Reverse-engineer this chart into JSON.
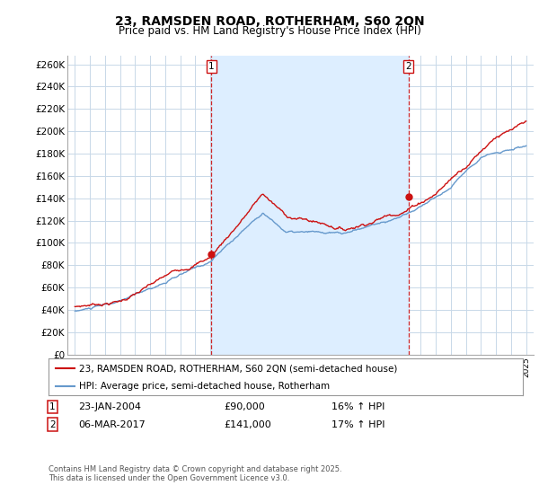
{
  "title": "23, RAMSDEN ROAD, ROTHERHAM, S60 2QN",
  "subtitle": "Price paid vs. HM Land Registry's House Price Index (HPI)",
  "ylabel_ticks": [
    "£0",
    "£20K",
    "£40K",
    "£60K",
    "£80K",
    "£100K",
    "£120K",
    "£140K",
    "£160K",
    "£180K",
    "£200K",
    "£220K",
    "£240K",
    "£260K"
  ],
  "ytick_values": [
    0,
    20000,
    40000,
    60000,
    80000,
    100000,
    120000,
    140000,
    160000,
    180000,
    200000,
    220000,
    240000,
    260000
  ],
  "ylim": [
    0,
    268000
  ],
  "xlim_start": 1994.5,
  "xlim_end": 2025.5,
  "hpi_color": "#6699cc",
  "price_color": "#cc1111",
  "dashed_line_color": "#cc1111",
  "shade_color": "#ddeeff",
  "marker1_x": 2004.07,
  "marker1_y": 90000,
  "marker2_x": 2017.18,
  "marker2_y": 141000,
  "legend_label1": "23, RAMSDEN ROAD, ROTHERHAM, S60 2QN (semi-detached house)",
  "legend_label2": "HPI: Average price, semi-detached house, Rotherham",
  "table_row1": [
    "1",
    "23-JAN-2004",
    "£90,000",
    "16% ↑ HPI"
  ],
  "table_row2": [
    "2",
    "06-MAR-2017",
    "£141,000",
    "17% ↑ HPI"
  ],
  "footer": "Contains HM Land Registry data © Crown copyright and database right 2025.\nThis data is licensed under the Open Government Licence v3.0.",
  "background_color": "#ffffff",
  "grid_color": "#c8d8e8"
}
